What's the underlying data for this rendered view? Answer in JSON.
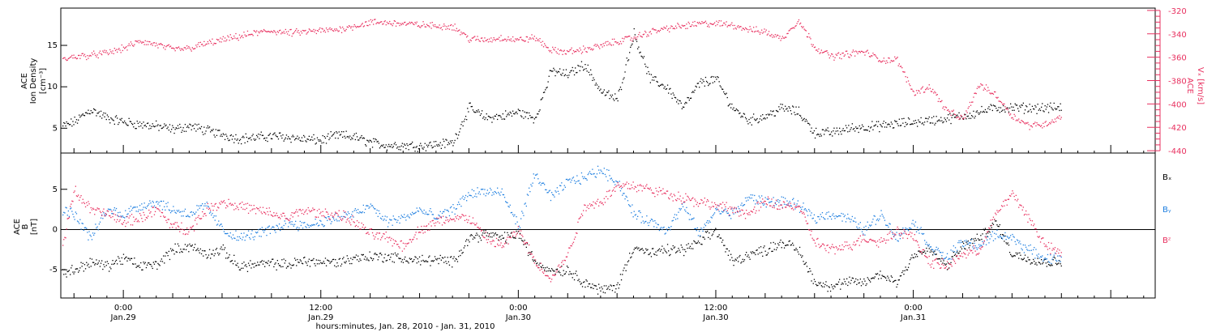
{
  "colors": {
    "black": "#000000",
    "pink": "#e8305f",
    "blue": "#1f7fe0"
  },
  "chart_data": [
    {
      "type": "scatter",
      "panel": "top",
      "ylabel_left": [
        "ACE",
        "Ion Density",
        "[cm⁻³]"
      ],
      "ylabel_right": [
        "ACE",
        "Vₓ [km/s]"
      ],
      "ylim_left": [
        2,
        19.5
      ],
      "ylim_right": [
        -442,
        -318
      ],
      "yticks_left": [
        "5",
        "10",
        "15"
      ],
      "yticks_right": [
        "-320",
        "-340",
        "-360",
        "-380",
        "-400",
        "-420",
        "-440"
      ],
      "x_unit": "hours since 2010-01-28 00:00",
      "xlim": [
        20.2,
        86.7
      ],
      "series": [
        {
          "key": "density",
          "color": "black",
          "axis": "left",
          "x": [
            20.3,
            21,
            22,
            23,
            24,
            25,
            26,
            27,
            28,
            29,
            30,
            31,
            32,
            33,
            34,
            35,
            36,
            37,
            38,
            39,
            40,
            41,
            42,
            43,
            44,
            45,
            46,
            47,
            48,
            49,
            50,
            51,
            52,
            53,
            54,
            55,
            56,
            57,
            58,
            59,
            60,
            61,
            62,
            63,
            64,
            65,
            66,
            67,
            68,
            69,
            70,
            71,
            72,
            73,
            74,
            75,
            76,
            77,
            78,
            79,
            80,
            81
          ],
          "values": [
            5.3,
            5.8,
            7.3,
            6.3,
            5.8,
            5.5,
            5.3,
            4.9,
            5.3,
            4.8,
            4.3,
            3.8,
            3.9,
            4.1,
            4.0,
            3.7,
            3.6,
            4.2,
            4.0,
            3.3,
            3.0,
            3.0,
            2.9,
            3.1,
            3.3,
            7.5,
            6.3,
            6.5,
            7.0,
            6.2,
            12.0,
            11.5,
            12.8,
            9.5,
            8.5,
            16.5,
            11.0,
            10.0,
            7.5,
            10.5,
            11.0,
            7.5,
            6.0,
            6.5,
            7.5,
            7.0,
            4.5,
            4.5,
            5.0,
            5.2,
            5.3,
            5.6,
            5.8,
            6.0,
            6.2,
            6.5,
            7.0,
            7.5,
            7.5,
            7.5,
            7.5,
            7.5
          ]
        },
        {
          "key": "vx",
          "color": "pink",
          "axis": "right",
          "x": [
            20.3,
            21,
            22,
            23,
            24,
            25,
            26,
            27,
            28,
            29,
            30,
            31,
            32,
            33,
            34,
            35,
            36,
            37,
            38,
            39,
            40,
            41,
            42,
            43,
            44,
            45,
            46,
            47,
            48,
            49,
            50,
            51,
            52,
            53,
            54,
            55,
            56,
            57,
            58,
            59,
            60,
            61,
            62,
            63,
            64,
            65,
            66,
            67,
            68,
            69,
            70,
            71,
            72,
            73,
            74,
            75,
            76,
            77,
            78,
            79,
            80,
            81
          ],
          "values": [
            -362,
            -359,
            -358,
            -356,
            -352,
            -346,
            -349,
            -353,
            -352,
            -348,
            -345,
            -342,
            -339,
            -337,
            -339,
            -338,
            -337,
            -336,
            -333,
            -330,
            -330,
            -331,
            -332,
            -333,
            -333,
            -344,
            -345,
            -343,
            -345,
            -343,
            -354,
            -355,
            -353,
            -350,
            -346,
            -343,
            -338,
            -335,
            -333,
            -331,
            -331,
            -332,
            -336,
            -338,
            -344,
            -328,
            -351,
            -359,
            -357,
            -355,
            -362,
            -362,
            -390,
            -385,
            -405,
            -413,
            -383,
            -392,
            -410,
            -418,
            -417,
            -410
          ]
        }
      ]
    },
    {
      "type": "scatter",
      "panel": "bottom",
      "ylabel_left": [
        "ACE",
        "B",
        "[nT]"
      ],
      "ylim": [
        -8.5,
        9.5
      ],
      "yticks": [
        "-5",
        "0",
        "5"
      ],
      "x_unit": "hours since 2010-01-28 00:00",
      "xlim": [
        20.2,
        86.7
      ],
      "xticks": [
        {
          "x": 24,
          "l1": "0:00",
          "l2": "Jan.29"
        },
        {
          "x": 36,
          "l1": "12:00",
          "l2": "Jan.29"
        },
        {
          "x": 48,
          "l1": "0:00",
          "l2": "Jan.30"
        },
        {
          "x": 60,
          "l1": "12:00",
          "l2": "Jan.30"
        },
        {
          "x": 72,
          "l1": "0:00",
          "l2": "Jan.31"
        }
      ],
      "xlabel": "hours:minutes, Jan. 28, 2010 - Jan. 31, 2010",
      "series": [
        {
          "key": "bx",
          "name": "Bₓ",
          "color": "black",
          "x": [
            20.3,
            21,
            22,
            23,
            24,
            25,
            26,
            27,
            28,
            29,
            30,
            31,
            32,
            33,
            34,
            35,
            36,
            37,
            38,
            39,
            40,
            41,
            42,
            43,
            44,
            45,
            46,
            47,
            48,
            49,
            50,
            51,
            52,
            53,
            54,
            55,
            56,
            57,
            58,
            59,
            60,
            61,
            62,
            63,
            64,
            65,
            66,
            67,
            68,
            69,
            70,
            71,
            72,
            73,
            74,
            75,
            76,
            77,
            78,
            79,
            80,
            81
          ],
          "values": [
            -5.3,
            -5.0,
            -4.0,
            -4.5,
            -3.5,
            -4.5,
            -4.3,
            -2.5,
            -2.0,
            -3.0,
            -2.5,
            -4.5,
            -4.3,
            -4.2,
            -4.3,
            -3.8,
            -4.0,
            -4.0,
            -3.5,
            -3.3,
            -3.3,
            -3.6,
            -3.8,
            -3.7,
            -4.0,
            -1.0,
            -0.5,
            -1.0,
            -0.5,
            -4.0,
            -5.0,
            -5.0,
            -6.5,
            -7.5,
            -7.0,
            -2.0,
            -3.0,
            -2.5,
            -2.5,
            -1.5,
            0.0,
            -4.0,
            -3.0,
            -2.5,
            -1.5,
            -2.5,
            -6.5,
            -7.0,
            -6.5,
            -6.5,
            -5.5,
            -6.5,
            -3.0,
            -2.5,
            -4.5,
            -2.0,
            -1.0,
            1.0,
            -3.0,
            -3.5,
            -4.0,
            -4.0
          ]
        },
        {
          "key": "by",
          "name": "Bᵧ",
          "color": "blue",
          "x": [
            20.3,
            21,
            22,
            23,
            24,
            25,
            26,
            27,
            28,
            29,
            30,
            31,
            32,
            33,
            34,
            35,
            36,
            37,
            38,
            39,
            40,
            41,
            42,
            43,
            44,
            45,
            46,
            47,
            48,
            49,
            50,
            51,
            52,
            53,
            54,
            55,
            56,
            57,
            58,
            59,
            60,
            61,
            62,
            63,
            64,
            65,
            66,
            67,
            68,
            69,
            70,
            71,
            72,
            73,
            74,
            75,
            76,
            77,
            78,
            79,
            80,
            81
          ],
          "values": [
            2.5,
            2.0,
            -1.0,
            2.5,
            2.0,
            3.0,
            3.5,
            2.5,
            2.0,
            3.0,
            0.0,
            -1.0,
            -0.5,
            0.0,
            1.0,
            0.5,
            1.0,
            1.5,
            2.0,
            3.0,
            1.0,
            1.5,
            2.5,
            1.5,
            2.5,
            4.5,
            4.8,
            4.5,
            0.5,
            7.0,
            4.0,
            6.0,
            6.5,
            7.5,
            6.0,
            2.0,
            1.0,
            0.0,
            3.0,
            -0.5,
            2.5,
            2.0,
            4.0,
            3.5,
            3.5,
            3.0,
            1.5,
            2.0,
            1.5,
            0.0,
            2.0,
            -1.0,
            1.0,
            -2.0,
            -3.5,
            -1.5,
            -2.0,
            -0.5,
            -1.0,
            -2.5,
            -3.5,
            -3.5
          ]
        },
        {
          "key": "bz",
          "name": "Bᶻ",
          "color": "pink",
          "x": [
            20.3,
            21,
            22,
            23,
            24,
            25,
            26,
            27,
            28,
            29,
            30,
            31,
            32,
            33,
            34,
            35,
            36,
            37,
            38,
            39,
            40,
            41,
            42,
            43,
            44,
            45,
            46,
            47,
            48,
            49,
            50,
            51,
            52,
            53,
            54,
            55,
            56,
            57,
            58,
            59,
            60,
            61,
            62,
            63,
            64,
            65,
            66,
            67,
            68,
            69,
            70,
            71,
            72,
            73,
            74,
            75,
            76,
            77,
            78,
            79,
            80,
            81
          ],
          "values": [
            -2.0,
            5.0,
            2.5,
            2.0,
            1.0,
            1.5,
            2.5,
            0.5,
            0.0,
            2.5,
            3.5,
            3.0,
            2.5,
            2.0,
            1.5,
            2.5,
            2.0,
            2.0,
            1.0,
            -0.5,
            -1.0,
            -2.0,
            0.0,
            1.0,
            1.5,
            1.5,
            -1.0,
            -2.0,
            0.0,
            -4.0,
            -6.0,
            -3.0,
            3.0,
            3.5,
            5.5,
            5.5,
            5.0,
            4.5,
            4.0,
            3.5,
            3.0,
            2.5,
            2.0,
            3.5,
            3.0,
            3.0,
            -1.5,
            -2.5,
            -2.0,
            -1.0,
            -1.5,
            0.0,
            -1.0,
            -4.0,
            -4.5,
            -3.0,
            -2.5,
            2.0,
            4.5,
            1.5,
            -2.0,
            -3.0
          ]
        }
      ]
    }
  ]
}
